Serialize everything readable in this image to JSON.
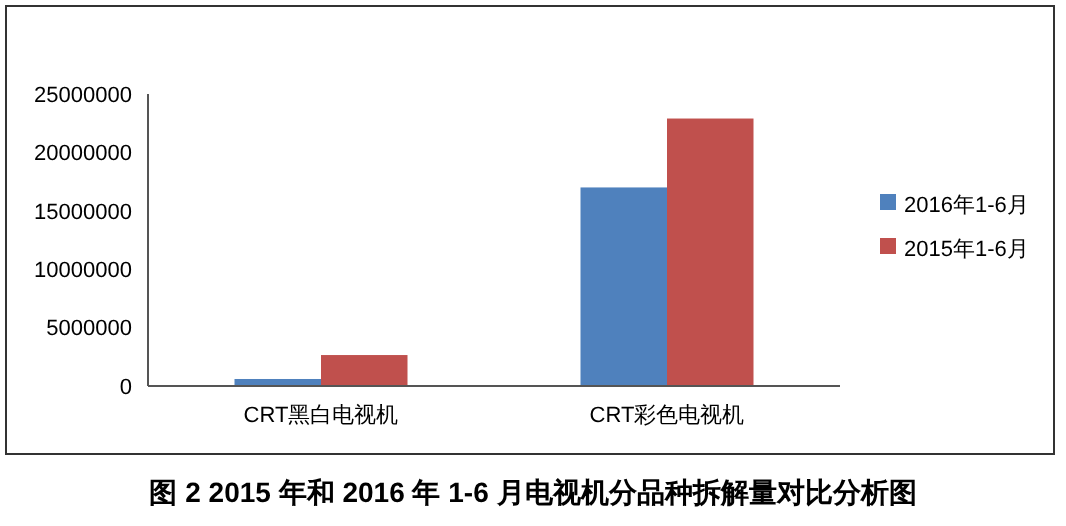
{
  "chart_data": {
    "type": "bar",
    "title": "图 2 2015 年和 2016 年 1-6 月电视机分品种拆解量对比分析图",
    "categories": [
      "CRT黑白电视机",
      "CRT彩色电视机"
    ],
    "series": [
      {
        "name": "2016年1-6月",
        "color": "#4f81bd",
        "values": [
          600000,
          17000000
        ]
      },
      {
        "name": "2015年1-6月",
        "color": "#c0504d",
        "values": [
          2650000,
          22900000
        ]
      }
    ],
    "ylim": [
      0,
      25000000
    ],
    "yticks": [
      0,
      5000000,
      10000000,
      15000000,
      20000000,
      25000000
    ],
    "grid": false,
    "legend": "right"
  }
}
